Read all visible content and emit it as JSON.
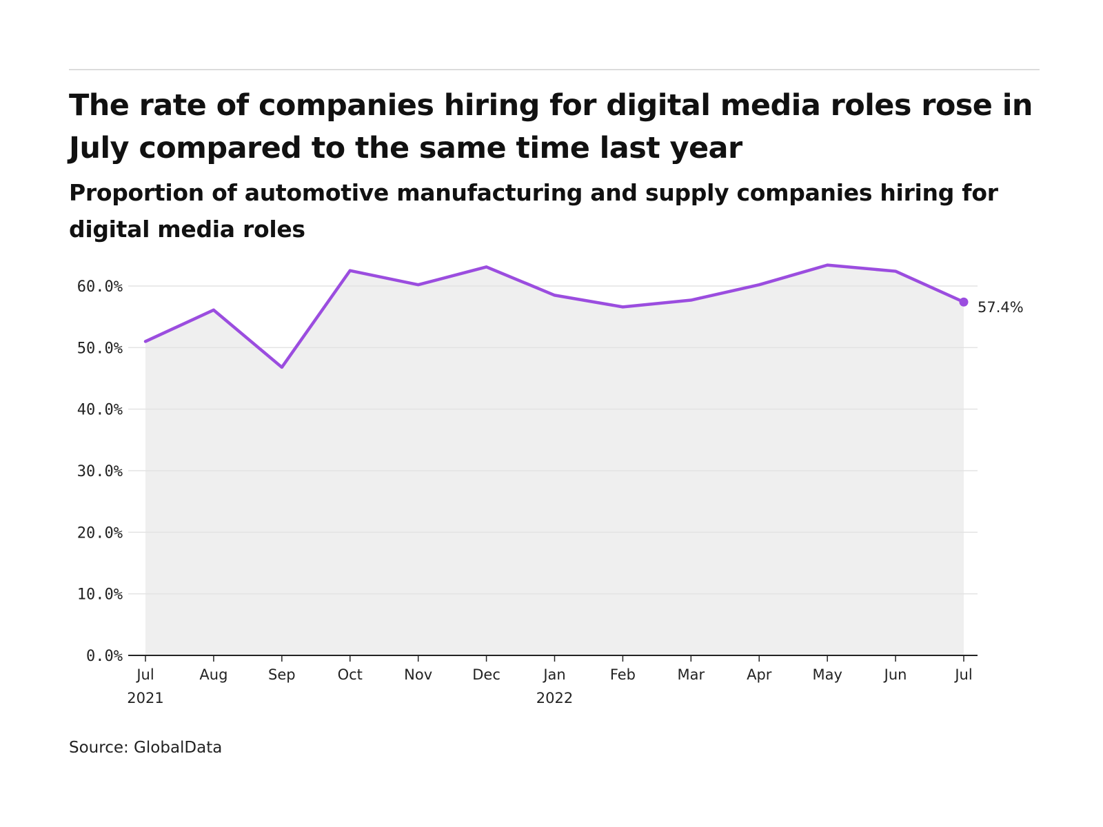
{
  "header": {
    "title": "The rate of companies hiring for digital media roles rose in July compared to the same time last year",
    "subtitle": "Proportion of automotive manufacturing and supply companies hiring for digital media roles"
  },
  "footer": {
    "source": "Source: GlobalData"
  },
  "colors": {
    "line": "#9b4ddf",
    "area": "#efefef",
    "grid": "#e3e3e3",
    "axis": "#222222"
  },
  "chart_data": {
    "type": "area",
    "x": [
      "Jul 2021",
      "Aug 2021",
      "Sep 2021",
      "Oct 2021",
      "Nov 2021",
      "Dec 2021",
      "Jan 2022",
      "Feb 2022",
      "Mar 2022",
      "Apr 2022",
      "May 2022",
      "Jun 2022",
      "Jul 2022"
    ],
    "x_tick_labels": [
      {
        "month": "Jul",
        "year": "2021"
      },
      {
        "month": "Aug",
        "year": ""
      },
      {
        "month": "Sep",
        "year": ""
      },
      {
        "month": "Oct",
        "year": ""
      },
      {
        "month": "Nov",
        "year": ""
      },
      {
        "month": "Dec",
        "year": ""
      },
      {
        "month": "Jan",
        "year": "2022"
      },
      {
        "month": "Feb",
        "year": ""
      },
      {
        "month": "Mar",
        "year": ""
      },
      {
        "month": "Apr",
        "year": ""
      },
      {
        "month": "May",
        "year": ""
      },
      {
        "month": "Jun",
        "year": ""
      },
      {
        "month": "Jul",
        "year": ""
      }
    ],
    "values": [
      51.0,
      56.1,
      46.8,
      62.5,
      60.2,
      63.1,
      58.5,
      56.6,
      57.7,
      60.2,
      63.4,
      62.4,
      57.4
    ],
    "y_ticks": [
      "0.0%",
      "10.0%",
      "20.0%",
      "30.0%",
      "40.0%",
      "50.0%",
      "60.0%"
    ],
    "ylim": [
      0,
      60
    ],
    "end_label": "57.4%",
    "grid": true,
    "legend": "none"
  }
}
